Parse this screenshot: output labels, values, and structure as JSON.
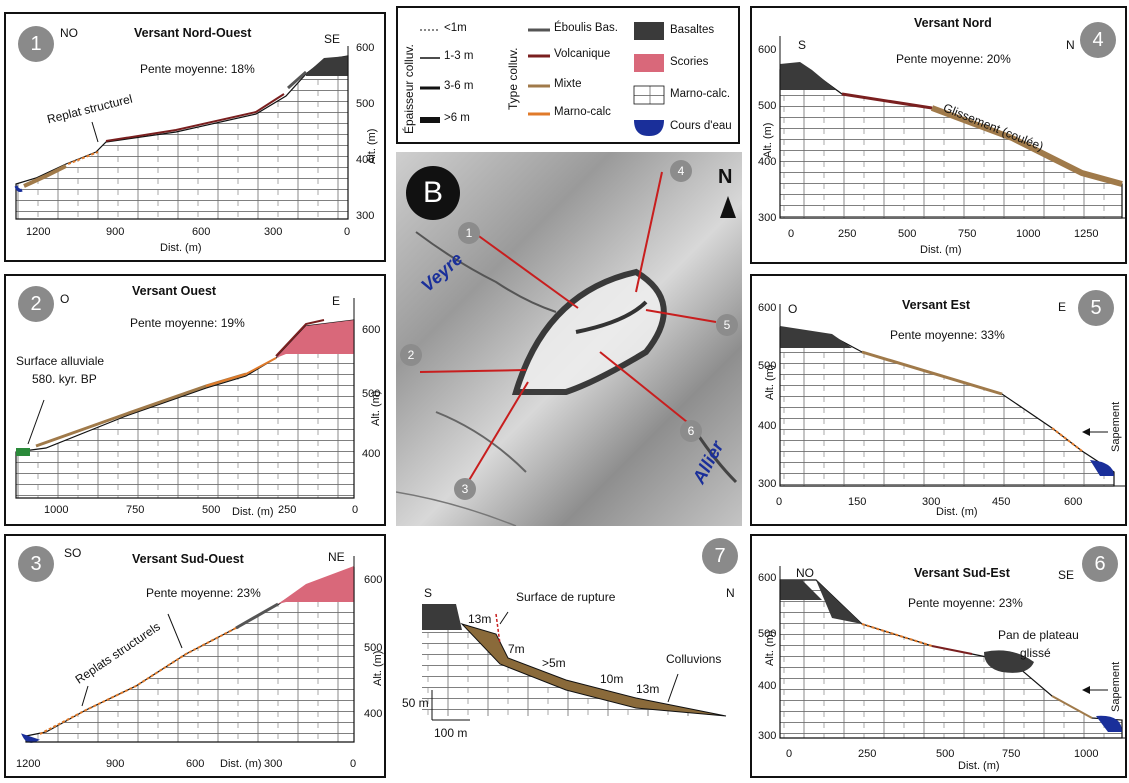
{
  "p1": {
    "num": "1",
    "left": "NO",
    "right": "SE",
    "title": "Versant Nord-Ouest",
    "slope": "Pente moyenne: 18%",
    "annot": "Replat structurel",
    "xticks": [
      "1200",
      "900",
      "600",
      "300",
      "0"
    ],
    "yticks": [
      "600",
      "500",
      "400",
      "300"
    ],
    "xlabel": "Dist. (m)",
    "ylabel": "Alt. (m)"
  },
  "p2": {
    "num": "2",
    "left": "O",
    "right": "E",
    "title": "Versant Ouest",
    "slope": "Pente moyenne: 19%",
    "annot1": "Surface alluviale",
    "annot2": "580. kyr. BP",
    "xticks": [
      "1000",
      "750",
      "500",
      "250",
      "0"
    ],
    "yticks": [
      "600",
      "500",
      "400"
    ],
    "xlabel": "Dist. (m)",
    "ylabel": "Alt. (m)"
  },
  "p3": {
    "num": "3",
    "left": "SO",
    "right": "NE",
    "title": "Versant Sud-Ouest",
    "slope": "Pente moyenne: 23%",
    "annot": "Replats structurels",
    "xticks": [
      "1200",
      "900",
      "600",
      "300",
      "0"
    ],
    "yticks": [
      "600",
      "500",
      "400"
    ],
    "xlabel": "Dist. (m)",
    "ylabel": "Alt. (m)"
  },
  "p4": {
    "num": "4",
    "left": "S",
    "right": "N",
    "title": "Versant Nord",
    "slope": "Pente moyenne: 20%",
    "annot": "Glissement (coulée)",
    "xticks": [
      "0",
      "250",
      "500",
      "750",
      "1000",
      "1250"
    ],
    "yticks": [
      "600",
      "500",
      "400",
      "300"
    ],
    "xlabel": "Dist. (m)",
    "ylabel": "Alt. (m)"
  },
  "p5": {
    "num": "5",
    "left": "O",
    "right": "E",
    "title": "Versant Est",
    "slope": "Pente moyenne: 33%",
    "annot": "Sapement",
    "xticks": [
      "0",
      "150",
      "300",
      "450",
      "600"
    ],
    "yticks": [
      "600",
      "500",
      "400",
      "300"
    ],
    "xlabel": "Dist. (m)",
    "ylabel": "Alt. (m)"
  },
  "p6": {
    "num": "6",
    "left": "NO",
    "right": "SE",
    "title": "Versant Sud-Est",
    "slope": "Pente moyenne: 23%",
    "annot1": "Pan de plateau",
    "annot2": "glissé",
    "annot3": "Sapement",
    "xticks": [
      "0",
      "250",
      "500",
      "750",
      "1000"
    ],
    "yticks": [
      "600",
      "500",
      "400",
      "300"
    ],
    "xlabel": "Dist. (m)",
    "ylabel": "Alt. (m)"
  },
  "p7": {
    "num": "7",
    "left": "S",
    "right": "N",
    "rupture": "Surface de rupture",
    "colluvions": "Colluvions",
    "depths": [
      "13m",
      "7m",
      ">5m",
      "10m",
      "13m"
    ],
    "scale_v": "50 m",
    "scale_h": "100 m"
  },
  "legend": {
    "thickness_title": "Épaisseur colluv.",
    "thickness": [
      "<1m",
      "1-3 m",
      "3-6 m",
      ">6 m"
    ],
    "type_title": "Type colluv.",
    "types": [
      {
        "label": "Éboulis Bas.",
        "color": "#555555"
      },
      {
        "label": "Volcanique",
        "color": "#7a1f1f"
      },
      {
        "label": "Mixte",
        "color": "#a07a4a"
      },
      {
        "label": "Marno-calc",
        "color": "#e07a2a"
      }
    ],
    "units": [
      {
        "label": "Basaltes",
        "color": "#3a3a3a"
      },
      {
        "label": "Scories",
        "color": "#d9687a"
      },
      {
        "label": "Marno-calc.",
        "color": "#ffffff"
      },
      {
        "label": "Cours d'eau",
        "color": "#1a2f9a"
      }
    ]
  },
  "map": {
    "badge": "B",
    "north": "N",
    "river1": "Veyre",
    "river2": "Allier",
    "points": [
      "1",
      "2",
      "3",
      "4",
      "5",
      "6"
    ]
  }
}
